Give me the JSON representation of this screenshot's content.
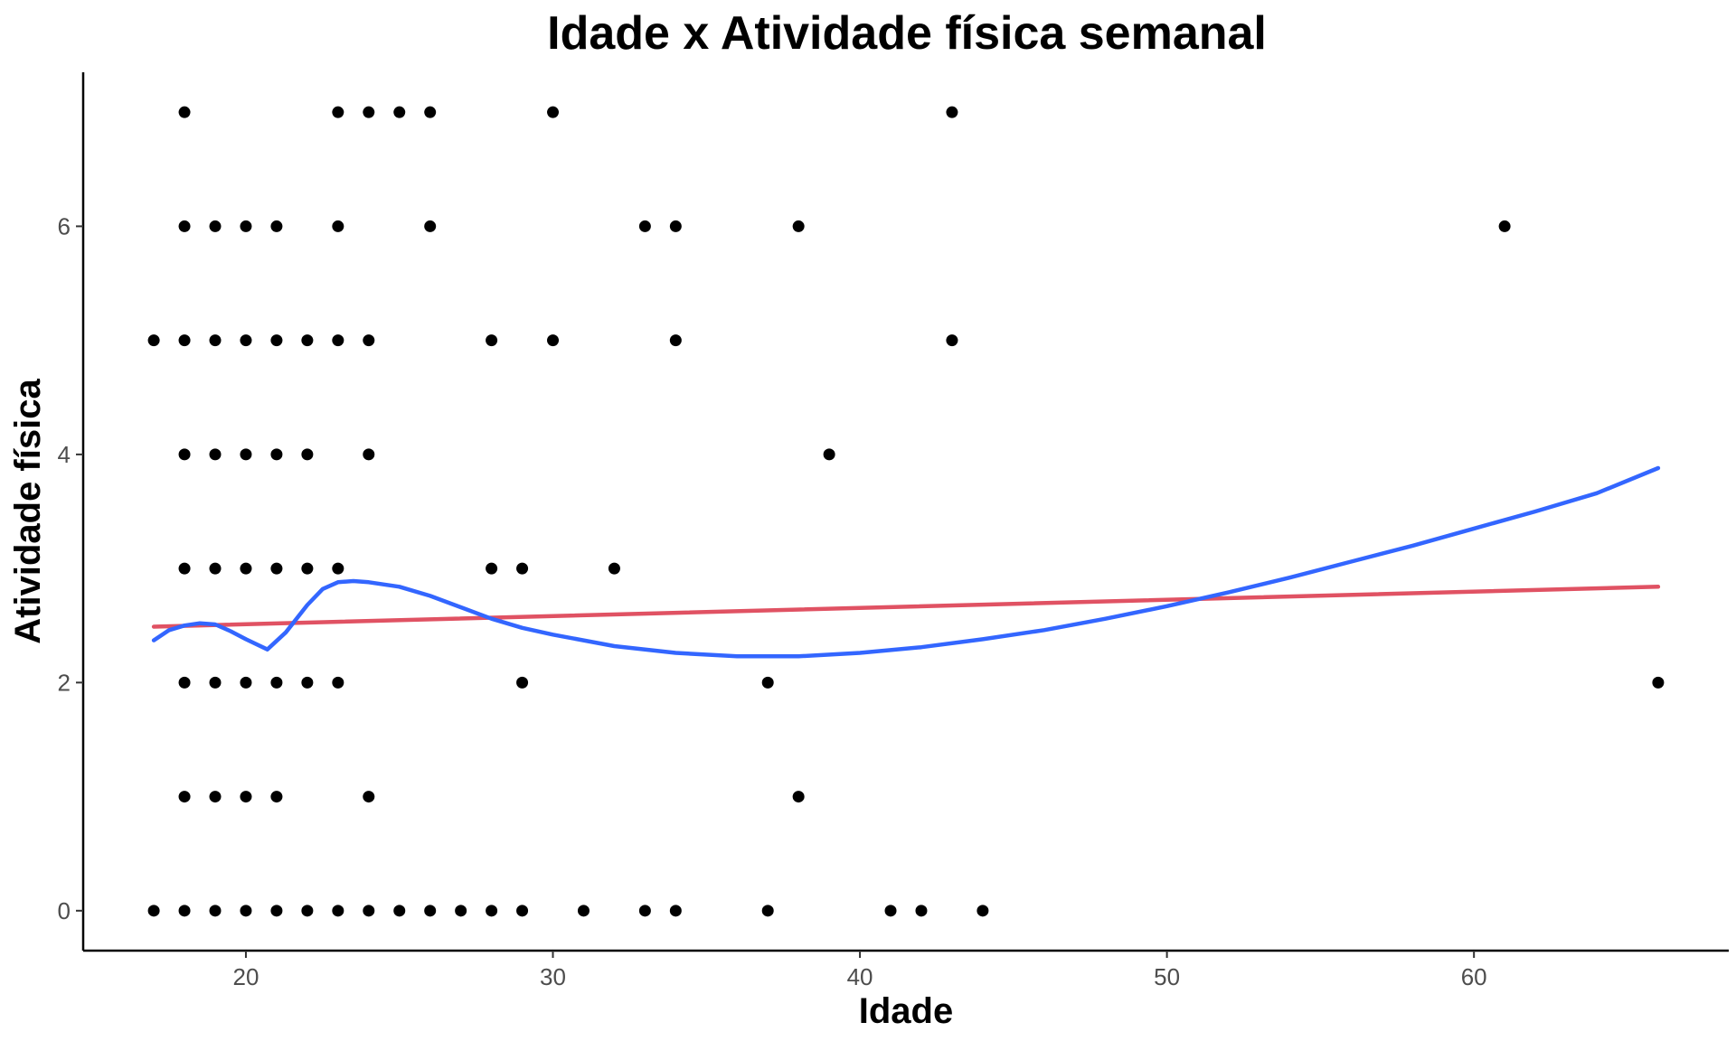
{
  "chart_data": {
    "type": "scatter",
    "title": "Idade x Atividade física semanal",
    "xlabel": "Idade",
    "ylabel": "Atividade física",
    "xlim": [
      14.7,
      68.3
    ],
    "ylim": [
      -0.35,
      7.35
    ],
    "x_ticks": [
      20,
      30,
      40,
      50,
      60
    ],
    "y_ticks": [
      0,
      2,
      4,
      6
    ],
    "grid": false,
    "legend": "none",
    "points": [
      {
        "x": 18,
        "y": 7
      },
      {
        "x": 23,
        "y": 7
      },
      {
        "x": 24,
        "y": 7
      },
      {
        "x": 25,
        "y": 7
      },
      {
        "x": 26,
        "y": 7
      },
      {
        "x": 30,
        "y": 7
      },
      {
        "x": 43,
        "y": 7
      },
      {
        "x": 18,
        "y": 6
      },
      {
        "x": 19,
        "y": 6
      },
      {
        "x": 20,
        "y": 6
      },
      {
        "x": 21,
        "y": 6
      },
      {
        "x": 23,
        "y": 6
      },
      {
        "x": 26,
        "y": 6
      },
      {
        "x": 33,
        "y": 6
      },
      {
        "x": 34,
        "y": 6
      },
      {
        "x": 38,
        "y": 6
      },
      {
        "x": 61,
        "y": 6
      },
      {
        "x": 17,
        "y": 5
      },
      {
        "x": 18,
        "y": 5
      },
      {
        "x": 19,
        "y": 5
      },
      {
        "x": 20,
        "y": 5
      },
      {
        "x": 21,
        "y": 5
      },
      {
        "x": 22,
        "y": 5
      },
      {
        "x": 23,
        "y": 5
      },
      {
        "x": 24,
        "y": 5
      },
      {
        "x": 28,
        "y": 5
      },
      {
        "x": 30,
        "y": 5
      },
      {
        "x": 34,
        "y": 5
      },
      {
        "x": 43,
        "y": 5
      },
      {
        "x": 18,
        "y": 4
      },
      {
        "x": 19,
        "y": 4
      },
      {
        "x": 20,
        "y": 4
      },
      {
        "x": 21,
        "y": 4
      },
      {
        "x": 22,
        "y": 4
      },
      {
        "x": 24,
        "y": 4
      },
      {
        "x": 39,
        "y": 4
      },
      {
        "x": 18,
        "y": 3
      },
      {
        "x": 19,
        "y": 3
      },
      {
        "x": 20,
        "y": 3
      },
      {
        "x": 21,
        "y": 3
      },
      {
        "x": 22,
        "y": 3
      },
      {
        "x": 23,
        "y": 3
      },
      {
        "x": 28,
        "y": 3
      },
      {
        "x": 29,
        "y": 3
      },
      {
        "x": 32,
        "y": 3
      },
      {
        "x": 18,
        "y": 2
      },
      {
        "x": 19,
        "y": 2
      },
      {
        "x": 20,
        "y": 2
      },
      {
        "x": 21,
        "y": 2
      },
      {
        "x": 22,
        "y": 2
      },
      {
        "x": 23,
        "y": 2
      },
      {
        "x": 29,
        "y": 2
      },
      {
        "x": 37,
        "y": 2
      },
      {
        "x": 66,
        "y": 2
      },
      {
        "x": 18,
        "y": 1
      },
      {
        "x": 19,
        "y": 1
      },
      {
        "x": 20,
        "y": 1
      },
      {
        "x": 21,
        "y": 1
      },
      {
        "x": 24,
        "y": 1
      },
      {
        "x": 38,
        "y": 1
      },
      {
        "x": 17,
        "y": 0
      },
      {
        "x": 18,
        "y": 0
      },
      {
        "x": 19,
        "y": 0
      },
      {
        "x": 20,
        "y": 0
      },
      {
        "x": 21,
        "y": 0
      },
      {
        "x": 22,
        "y": 0
      },
      {
        "x": 23,
        "y": 0
      },
      {
        "x": 24,
        "y": 0
      },
      {
        "x": 25,
        "y": 0
      },
      {
        "x": 26,
        "y": 0
      },
      {
        "x": 27,
        "y": 0
      },
      {
        "x": 28,
        "y": 0
      },
      {
        "x": 29,
        "y": 0
      },
      {
        "x": 31,
        "y": 0
      },
      {
        "x": 33,
        "y": 0
      },
      {
        "x": 34,
        "y": 0
      },
      {
        "x": 37,
        "y": 0
      },
      {
        "x": 41,
        "y": 0
      },
      {
        "x": 42,
        "y": 0
      },
      {
        "x": 44,
        "y": 0
      }
    ],
    "lines": [
      {
        "kind": "linear-fit",
        "color": "#e05263",
        "x": [
          17,
          66
        ],
        "y": [
          2.49,
          2.84
        ]
      },
      {
        "kind": "smooth-fit",
        "color": "#3366ff",
        "x": [
          17,
          17.5,
          18,
          18.5,
          19,
          19.5,
          20,
          20.7,
          21.3,
          22,
          22.5,
          23,
          23.5,
          24,
          25,
          26,
          27,
          28,
          29,
          30,
          32,
          34,
          36,
          38,
          40,
          42,
          44,
          46,
          48,
          50,
          52,
          54,
          56,
          58,
          60,
          62,
          64,
          66
        ],
        "y": [
          2.37,
          2.46,
          2.5,
          2.52,
          2.51,
          2.45,
          2.38,
          2.29,
          2.44,
          2.68,
          2.82,
          2.88,
          2.89,
          2.88,
          2.84,
          2.76,
          2.66,
          2.56,
          2.48,
          2.42,
          2.32,
          2.26,
          2.23,
          2.23,
          2.26,
          2.31,
          2.38,
          2.46,
          2.56,
          2.67,
          2.79,
          2.92,
          3.06,
          3.2,
          3.35,
          3.5,
          3.66,
          3.88
        ]
      }
    ]
  }
}
